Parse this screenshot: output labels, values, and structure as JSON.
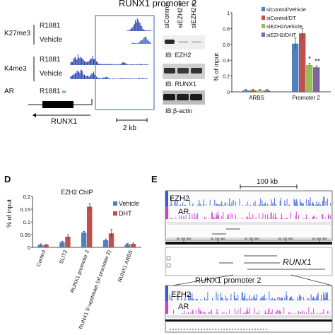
{
  "panelA": {
    "title": "RUNX1 promoter 2",
    "row_labels": [
      "K27me3",
      "K4me3",
      "AR"
    ],
    "track_labels": [
      "R1881",
      "Vehicle",
      "R1881",
      "Vehicle",
      "R1881"
    ],
    "gene_label": "RUNX1",
    "scale_label": "2 kb"
  },
  "panelB": {
    "lane_labels": [
      "siControl",
      "siEZH2 #",
      "siEZH2 #"
    ],
    "blot_labels": [
      "IB: EZH2",
      "IB: RUNX1",
      "IB:β-actin"
    ]
  },
  "panelC": {
    "chart_data": {
      "type": "bar",
      "ylabel": "% of input",
      "ylim": [
        0,
        1
      ],
      "yticks": [
        "0",
        "0.2",
        "0.4",
        "0.6",
        "0.8",
        "1"
      ],
      "categories": [
        "ARBS",
        "Promoter 2"
      ],
      "series": [
        {
          "name": "siControl/Vehicle",
          "color": "#4f81bd",
          "values": [
            0.02,
            0.61
          ],
          "errors": [
            0.01,
            0.07
          ]
        },
        {
          "name": "siControl/DT",
          "color": "#c0504d",
          "values": [
            0.02,
            0.74
          ],
          "errors": [
            0.01,
            0.06
          ]
        },
        {
          "name": "siEZH2/Vehicle",
          "color": "#9bbb59",
          "values": [
            0.02,
            0.34
          ],
          "errors": [
            0.01,
            0.02
          ]
        },
        {
          "name": "siEZH2/DHT",
          "color": "#8064a2",
          "values": [
            0.02,
            0.31
          ],
          "errors": [
            0.01,
            0.02
          ]
        }
      ],
      "annotations": [
        "*",
        "**"
      ]
    }
  },
  "panelD": {
    "letter": "D",
    "chart_data": {
      "type": "bar",
      "title": "EZH2 ChIP",
      "ylabel": "% of input",
      "ylim": [
        0,
        0.2
      ],
      "yticks": [
        "0",
        "0.05",
        "0.1",
        "0.15",
        "0.2"
      ],
      "categories": [
        "Control",
        "SLIT2",
        "RUNX1 promoter 2",
        "RUNX1 5'-upstream (of promoter 2)",
        "RUNX1 ARBS"
      ],
      "series": [
        {
          "name": "Vehicle",
          "color": "#4f81bd",
          "values": [
            0.01,
            0.02,
            0.058,
            0.028,
            0.012
          ],
          "errors": [
            0.004,
            0.004,
            0.005,
            0.005,
            0.003
          ]
        },
        {
          "name": "DHT",
          "color": "#c0504d",
          "values": [
            0.01,
            0.042,
            0.16,
            0.055,
            0.014
          ],
          "errors": [
            0.003,
            0.008,
            0.012,
            0.015,
            0.003
          ]
        }
      ]
    }
  },
  "panelE": {
    "letter": "E",
    "scale_label": "100 kb",
    "track_labels": [
      "EZH2",
      "AR"
    ],
    "gene_label": "RUNX1",
    "zoom_title": "RUNX1 promoter 2",
    "zoom_track_labels": [
      "EZH2",
      "AR"
    ],
    "ruler_ticks": [
      "36,200,000",
      "36,250,000",
      "36,300,000",
      "36,350,000",
      "36,400,000"
    ]
  }
}
